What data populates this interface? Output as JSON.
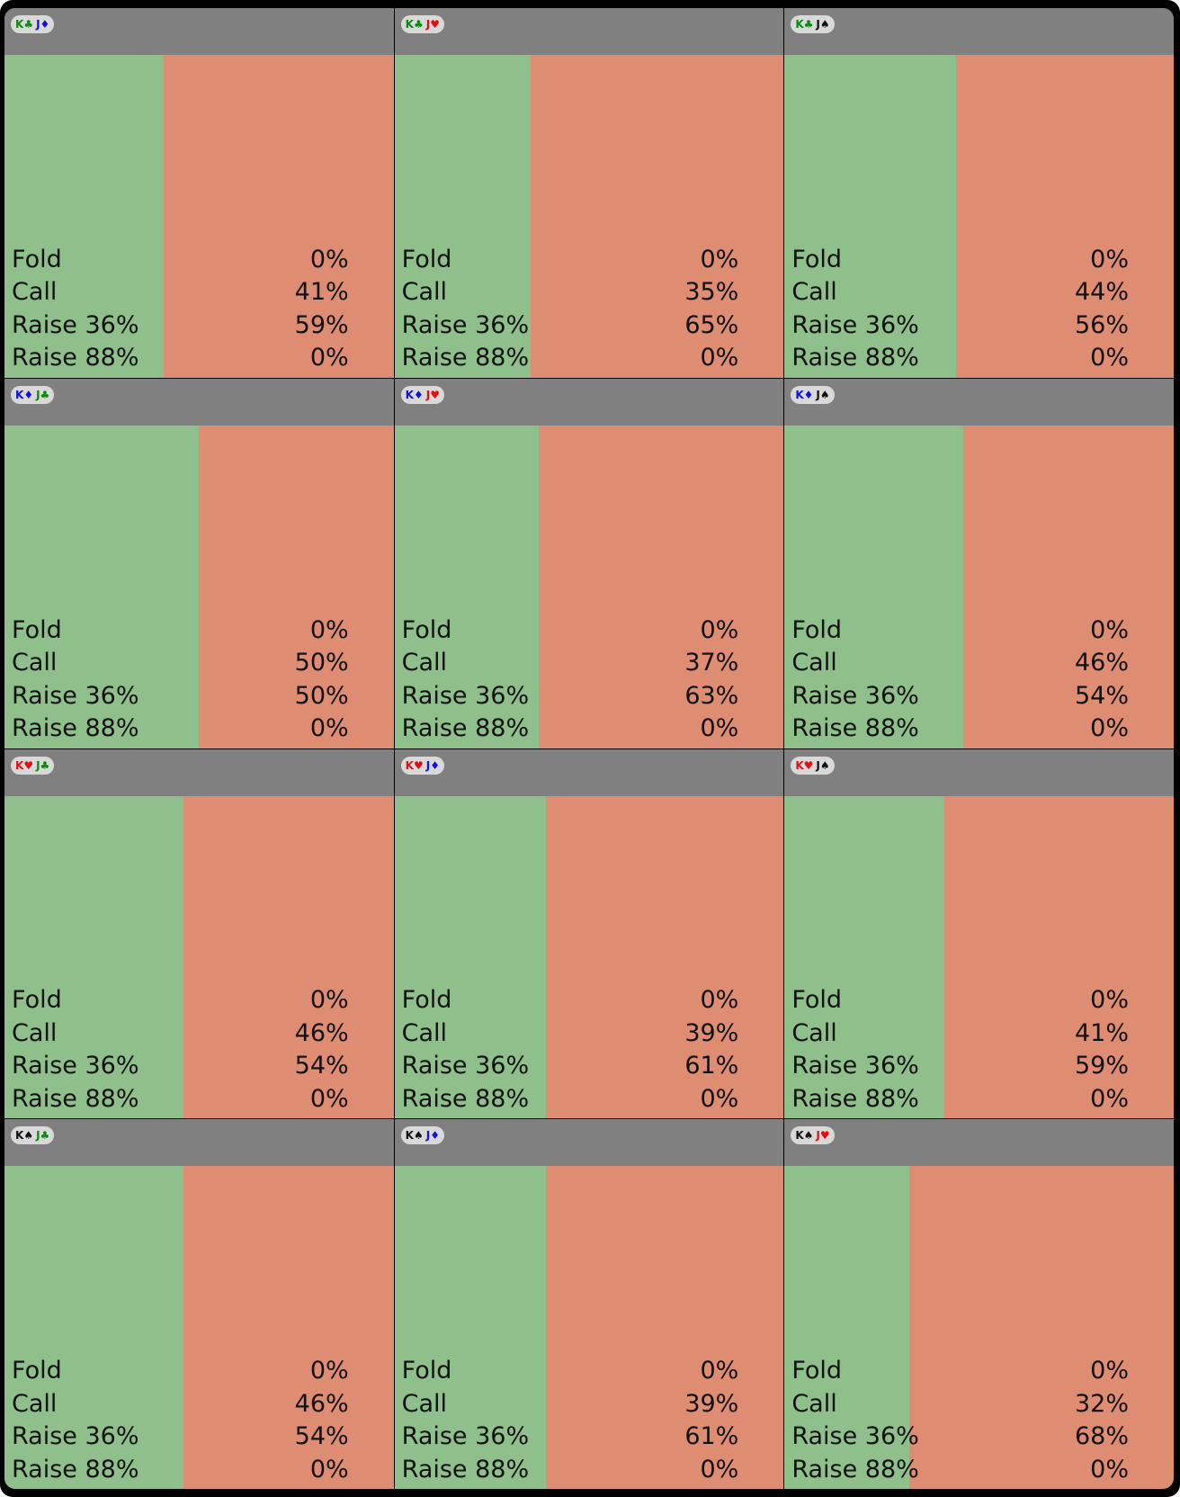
{
  "colors": {
    "header": "#808080",
    "call_area": "#8fbf8a",
    "raise_area": "#de8c72",
    "suit_clubs": "#0a8a0a",
    "suit_diamonds": "#1010e0",
    "suit_hearts": "#e01010",
    "suit_spades": "#111111"
  },
  "action_labels": {
    "fold": "Fold",
    "call": "Call",
    "raise_small": "Raise 36%",
    "raise_big": "Raise 88%"
  },
  "hands": [
    {
      "card1": {
        "rank": "K",
        "suit": "♣",
        "suit_name": "clubs"
      },
      "card2": {
        "rank": "J",
        "suit": "♦",
        "suit_name": "diamonds"
      },
      "fold": "0%",
      "call": "41%",
      "raise_small": "59%",
      "raise_big": "0%",
      "call_fraction": 0.41
    },
    {
      "card1": {
        "rank": "K",
        "suit": "♣",
        "suit_name": "clubs"
      },
      "card2": {
        "rank": "J",
        "suit": "♥",
        "suit_name": "hearts"
      },
      "fold": "0%",
      "call": "35%",
      "raise_small": "65%",
      "raise_big": "0%",
      "call_fraction": 0.35
    },
    {
      "card1": {
        "rank": "K",
        "suit": "♣",
        "suit_name": "clubs"
      },
      "card2": {
        "rank": "J",
        "suit": "♠",
        "suit_name": "spades"
      },
      "fold": "0%",
      "call": "44%",
      "raise_small": "56%",
      "raise_big": "0%",
      "call_fraction": 0.44
    },
    {
      "card1": {
        "rank": "K",
        "suit": "♦",
        "suit_name": "diamonds"
      },
      "card2": {
        "rank": "J",
        "suit": "♣",
        "suit_name": "clubs"
      },
      "fold": "0%",
      "call": "50%",
      "raise_small": "50%",
      "raise_big": "0%",
      "call_fraction": 0.5
    },
    {
      "card1": {
        "rank": "K",
        "suit": "♦",
        "suit_name": "diamonds"
      },
      "card2": {
        "rank": "J",
        "suit": "♥",
        "suit_name": "hearts"
      },
      "fold": "0%",
      "call": "37%",
      "raise_small": "63%",
      "raise_big": "0%",
      "call_fraction": 0.37
    },
    {
      "card1": {
        "rank": "K",
        "suit": "♦",
        "suit_name": "diamonds"
      },
      "card2": {
        "rank": "J",
        "suit": "♠",
        "suit_name": "spades"
      },
      "fold": "0%",
      "call": "46%",
      "raise_small": "54%",
      "raise_big": "0%",
      "call_fraction": 0.46
    },
    {
      "card1": {
        "rank": "K",
        "suit": "♥",
        "suit_name": "hearts"
      },
      "card2": {
        "rank": "J",
        "suit": "♣",
        "suit_name": "clubs"
      },
      "fold": "0%",
      "call": "46%",
      "raise_small": "54%",
      "raise_big": "0%",
      "call_fraction": 0.46
    },
    {
      "card1": {
        "rank": "K",
        "suit": "♥",
        "suit_name": "hearts"
      },
      "card2": {
        "rank": "J",
        "suit": "♦",
        "suit_name": "diamonds"
      },
      "fold": "0%",
      "call": "39%",
      "raise_small": "61%",
      "raise_big": "0%",
      "call_fraction": 0.39
    },
    {
      "card1": {
        "rank": "K",
        "suit": "♥",
        "suit_name": "hearts"
      },
      "card2": {
        "rank": "J",
        "suit": "♠",
        "suit_name": "spades"
      },
      "fold": "0%",
      "call": "41%",
      "raise_small": "59%",
      "raise_big": "0%",
      "call_fraction": 0.41
    },
    {
      "card1": {
        "rank": "K",
        "suit": "♠",
        "suit_name": "spades"
      },
      "card2": {
        "rank": "J",
        "suit": "♣",
        "suit_name": "clubs"
      },
      "fold": "0%",
      "call": "46%",
      "raise_small": "54%",
      "raise_big": "0%",
      "call_fraction": 0.46
    },
    {
      "card1": {
        "rank": "K",
        "suit": "♠",
        "suit_name": "spades"
      },
      "card2": {
        "rank": "J",
        "suit": "♦",
        "suit_name": "diamonds"
      },
      "fold": "0%",
      "call": "39%",
      "raise_small": "61%",
      "raise_big": "0%",
      "call_fraction": 0.39
    },
    {
      "card1": {
        "rank": "K",
        "suit": "♠",
        "suit_name": "spades"
      },
      "card2": {
        "rank": "J",
        "suit": "♥",
        "suit_name": "hearts"
      },
      "fold": "0%",
      "call": "32%",
      "raise_small": "68%",
      "raise_big": "0%",
      "call_fraction": 0.32
    }
  ]
}
